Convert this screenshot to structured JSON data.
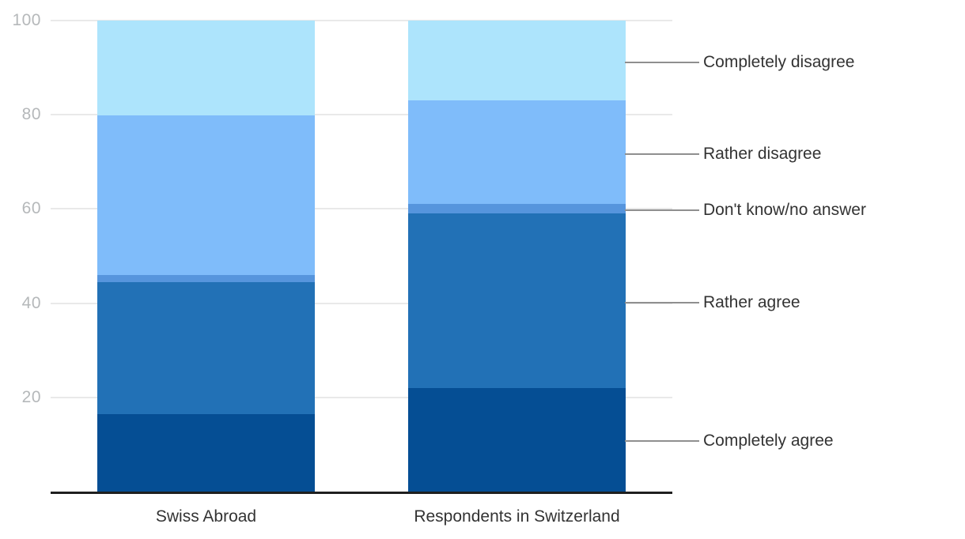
{
  "chart_data": {
    "type": "bar",
    "stacked": true,
    "orientation": "vertical",
    "categories": [
      "Swiss Abroad",
      "Respondents in Switzerland"
    ],
    "series": [
      {
        "name": "Completely agree",
        "values": [
          16.5,
          22
        ],
        "color": "#054e94"
      },
      {
        "name": "Rather agree",
        "values": [
          28,
          37
        ],
        "color": "#2271b6"
      },
      {
        "name": "Don't know/no answer",
        "values": [
          1.5,
          2
        ],
        "color": "#5695dd"
      },
      {
        "name": "Rather disagree",
        "values": [
          33.8,
          22
        ],
        "color": "#7fbcfa"
      },
      {
        "name": "Completely disagree",
        "values": [
          20.2,
          17
        ],
        "color": "#ade4fc"
      }
    ],
    "ylim": [
      0,
      100
    ],
    "yticks": [
      20,
      40,
      60,
      80,
      100
    ],
    "grid": true,
    "legend_position": "right-annotations-with-leader-lines",
    "right_labels_top_to_bottom": [
      "Completely disagree",
      "Rather disagree",
      "Don't know/no answer",
      "Rather agree",
      "Completely agree"
    ]
  },
  "colors": {
    "background": "#ffffff",
    "gridline": "#e9e9e9",
    "axis_line": "#1f1f1f",
    "tick_label": "#b5b8ba",
    "category_label": "#333333",
    "annotation_label": "#333333",
    "leader_line": "#8f8f8f"
  }
}
